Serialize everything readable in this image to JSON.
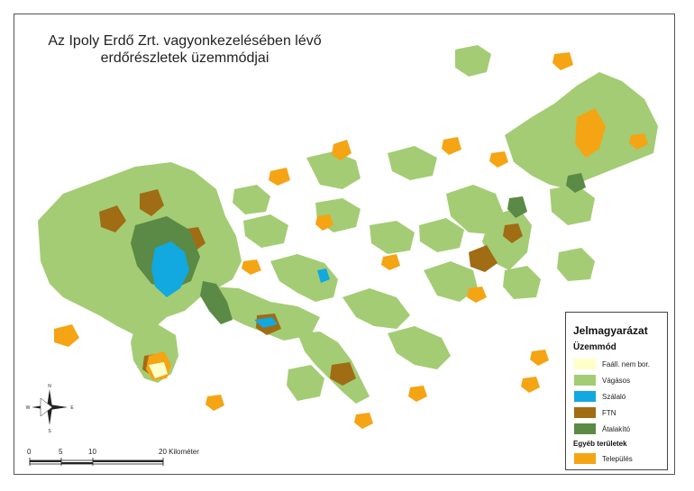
{
  "map": {
    "title_line1": "Az Ipoly Erdő Zrt. vagyonkezelésében lévő",
    "title_line2": "erdőrészletek üzemmódjai"
  },
  "colors": {
    "faall": "#ffffc8",
    "vagasos": "#a4cc74",
    "szalalo": "#12a8e0",
    "ftn": "#a06c14",
    "atalakito": "#5a8a46",
    "telepules": "#f5a414"
  },
  "legend": {
    "title": "Jelmagyarázat",
    "section1": "Üzemmód",
    "items": [
      {
        "label": "Faáll. nem bor.",
        "color_key": "faall"
      },
      {
        "label": "Vágásos",
        "color_key": "vagasos"
      },
      {
        "label": "Szálaló",
        "color_key": "szalalo"
      },
      {
        "label": "FTN",
        "color_key": "ftn"
      },
      {
        "label": "Átalakító",
        "color_key": "atalakito"
      }
    ],
    "section2": "Egyéb területek",
    "items2": [
      {
        "label": "Település",
        "color_key": "telepules"
      }
    ]
  },
  "compass": {
    "n": "N",
    "s": "S",
    "e": "E",
    "w": "W"
  },
  "scale": {
    "t0": "0",
    "t5": "5",
    "t10": "10",
    "t20": "20 Kilométer"
  }
}
